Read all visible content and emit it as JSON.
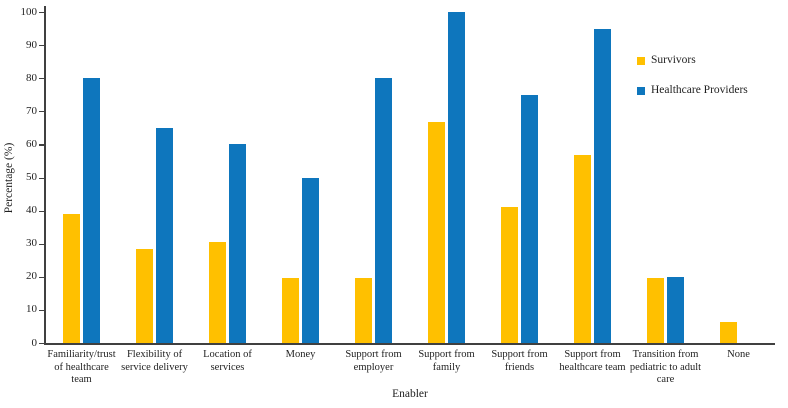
{
  "figure": {
    "background": "#ffffff",
    "axis_color": "#404040",
    "text_color": "#1f1f1f"
  },
  "chart_data": {
    "type": "bar",
    "title": "",
    "xlabel": "Enabler",
    "ylabel": "Percentage (%)",
    "ylim": [
      0,
      100
    ],
    "yticks": [
      0,
      10,
      20,
      30,
      40,
      50,
      60,
      70,
      80,
      90,
      100
    ],
    "grid": false,
    "legend_position": "right-inside",
    "categories": [
      "Familiarity/trust of healthcare team",
      "Flexibility of service delivery",
      "Location of services",
      "Money",
      "Support from employer",
      "Support from family",
      "Support from friends",
      "Support from healthcare team",
      "Transition from pediatric to adult care",
      "None"
    ],
    "category_label_lines": [
      [
        "Familiarity/trust",
        "of healthcare",
        "team"
      ],
      [
        "Flexibility of",
        "service delivery"
      ],
      [
        "Location of",
        "services"
      ],
      [
        "Money"
      ],
      [
        "Support from",
        "employer"
      ],
      [
        "Support from",
        "family"
      ],
      [
        "Support from",
        "friends"
      ],
      [
        "Support from",
        "healthcare team"
      ],
      [
        "Transition from",
        "pediatric to adult",
        "care"
      ],
      [
        "None"
      ]
    ],
    "series": [
      {
        "name": "Survivors",
        "color": "#FFC000",
        "values": [
          39,
          28.5,
          30.5,
          19.5,
          19.5,
          66.7,
          41,
          56.7,
          19.5,
          6.5
        ]
      },
      {
        "name": "Healthcare Providers",
        "color": "#0E76BD",
        "values": [
          80,
          65,
          60,
          50,
          80,
          100,
          75,
          95,
          20,
          0
        ]
      }
    ]
  }
}
